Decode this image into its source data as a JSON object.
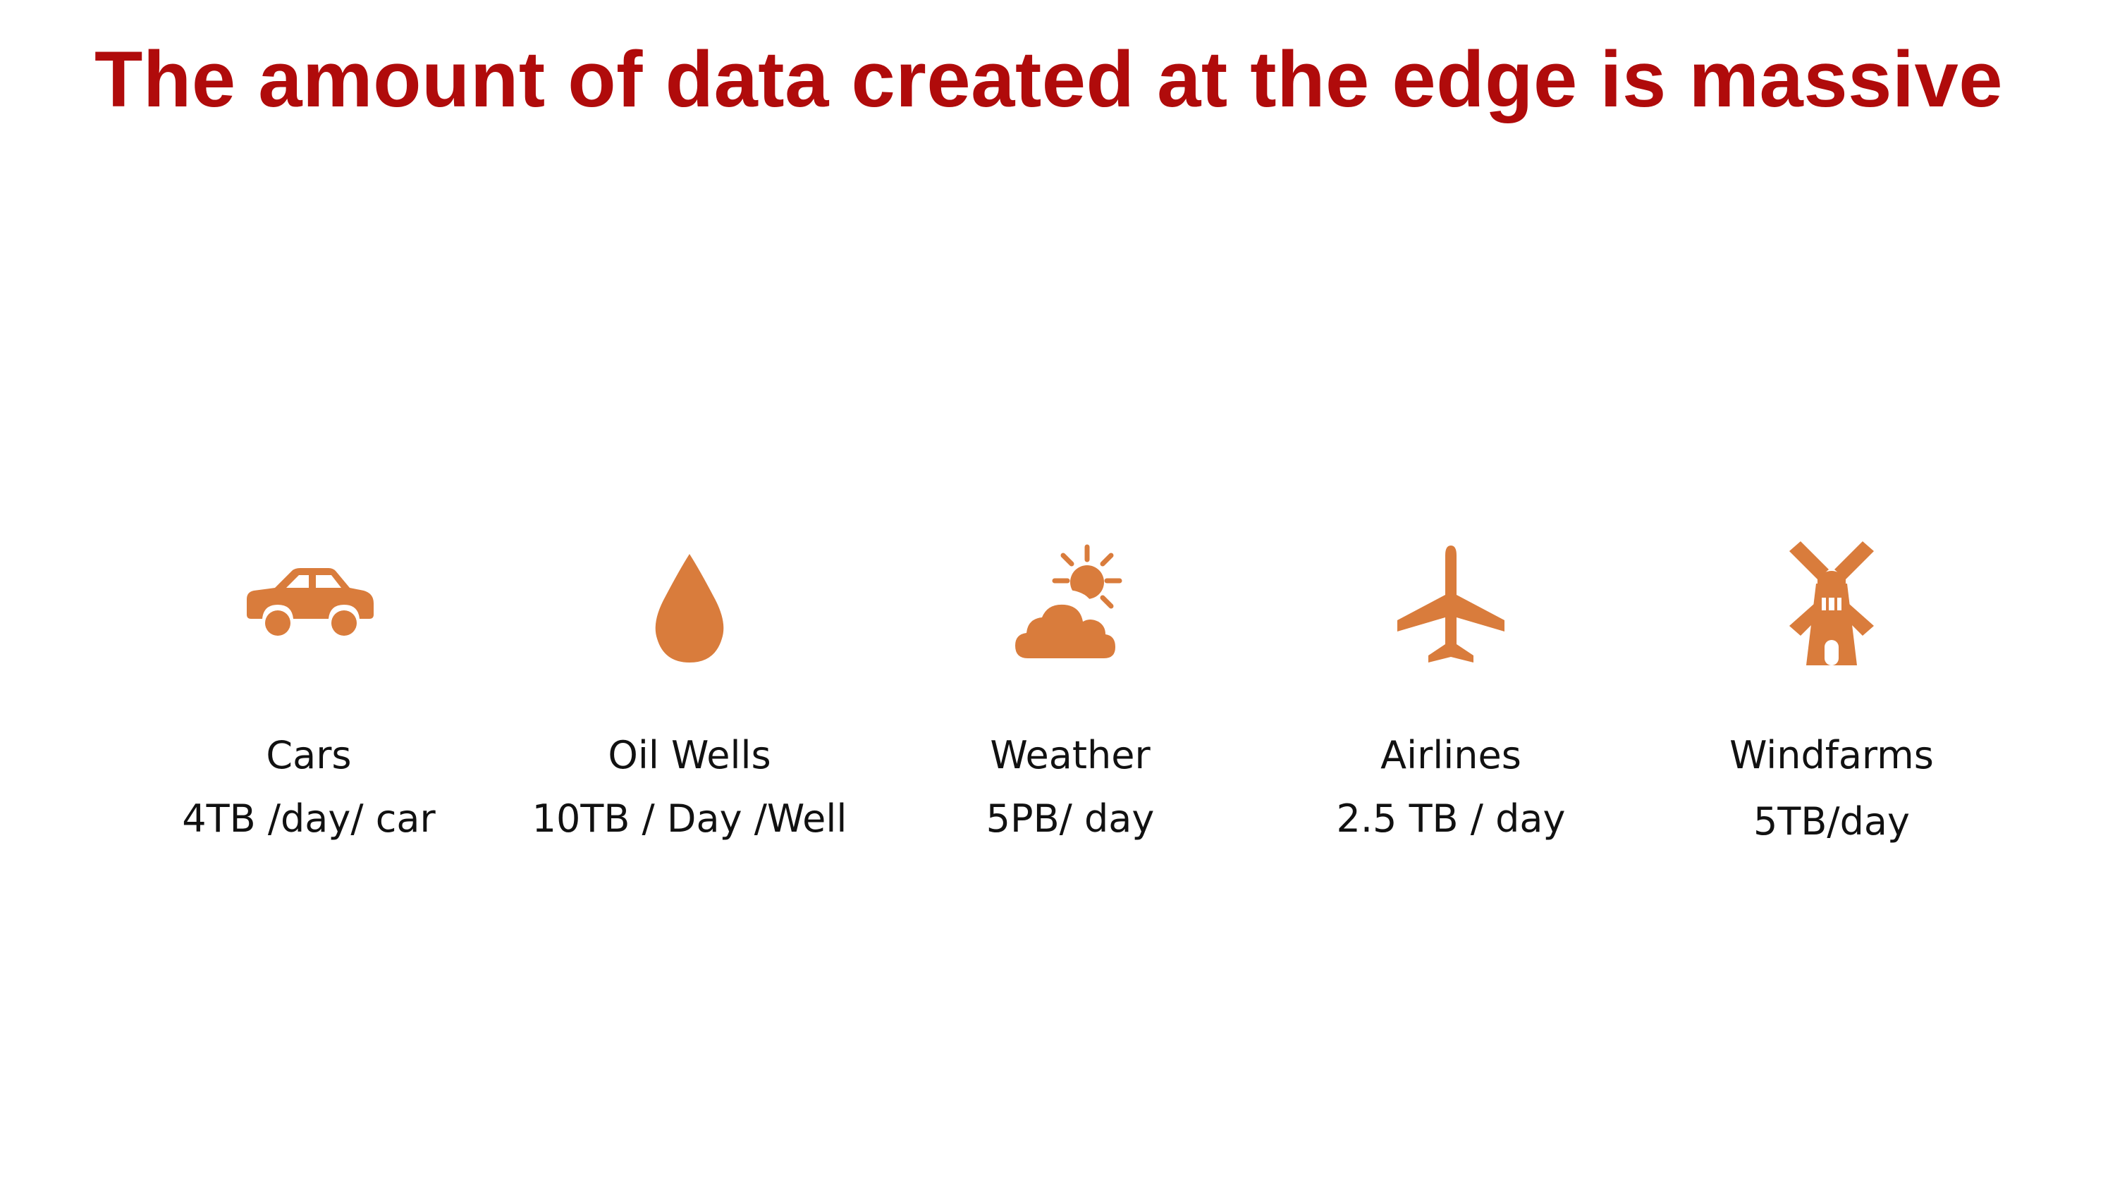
{
  "title": "The amount of data created at the edge is massive",
  "accent_color": "#b00b0b",
  "icon_color": "#d97c3c",
  "items": [
    {
      "icon": "car-icon",
      "label": "Cars",
      "rate": "4TB /day/ car"
    },
    {
      "icon": "oil-drop-icon",
      "label": "Oil Wells",
      "rate": "10TB / Day /Well"
    },
    {
      "icon": "weather-icon",
      "label": "Weather",
      "rate": "5PB/ day"
    },
    {
      "icon": "airplane-icon",
      "label": "Airlines",
      "rate": "2.5 TB / day"
    },
    {
      "icon": "windmill-icon",
      "label": "Windfarms",
      "rate": "5TB/day"
    }
  ]
}
